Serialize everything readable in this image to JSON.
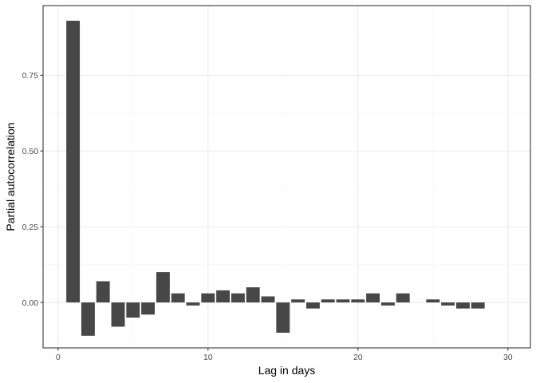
{
  "chart_data": {
    "type": "bar",
    "title": "",
    "xlabel": "Lag in days",
    "ylabel": "Partial autocorrelation",
    "xlim": [
      -1.0,
      31.5
    ],
    "ylim": [
      -0.15,
      0.98
    ],
    "x_ticks": [
      0,
      10,
      20,
      30
    ],
    "y_ticks": [
      0.0,
      0.25,
      0.5,
      0.75
    ],
    "x_tick_labels": [
      "0",
      "10",
      "20",
      "30"
    ],
    "y_tick_labels": [
      "0.00",
      "0.25",
      "0.50",
      "0.75"
    ],
    "grid": true,
    "bar_width": 0.9,
    "bar_color": "#474747",
    "x": [
      1,
      2,
      3,
      4,
      5,
      6,
      7,
      8,
      9,
      10,
      11,
      12,
      13,
      14,
      15,
      16,
      17,
      18,
      19,
      20,
      21,
      22,
      23,
      24,
      25,
      26,
      27,
      28
    ],
    "values": [
      0.93,
      -0.11,
      0.07,
      -0.08,
      -0.05,
      -0.04,
      0.1,
      0.03,
      -0.01,
      0.03,
      0.04,
      0.03,
      0.05,
      0.02,
      -0.1,
      0.01,
      -0.02,
      0.01,
      0.01,
      0.01,
      0.03,
      -0.01,
      0.03,
      0.0,
      0.01,
      -0.01,
      -0.02,
      -0.02
    ]
  }
}
